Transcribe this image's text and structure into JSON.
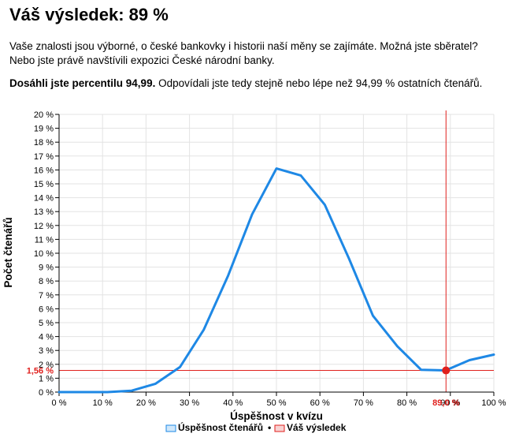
{
  "result": {
    "title": "Váš výsledek: 89 %",
    "description": "Vaše znalosti jsou výborné, o české bankovky i historii naší měny se zajímáte. Možná jste sběratel? Nebo jste právě navštívili expozici České národní banky.",
    "percentile_bold": "Dosáhli jste percentilu 94,99.",
    "percentile_rest": " Odpovídali jste tedy stejně nebo lépe než 94,99 % ostatních čtenářů."
  },
  "chart_data": {
    "type": "line",
    "xlabel": "Úspěšnost v kvízu",
    "ylabel": "Počet čtenářů",
    "xlim": [
      0,
      100
    ],
    "ylim": [
      0,
      20
    ],
    "x_ticks": [
      "0 %",
      "10 %",
      "20 %",
      "30 %",
      "40 %",
      "50 %",
      "60 %",
      "70 %",
      "80 %",
      "90 %",
      "100 %"
    ],
    "y_ticks": [
      "0 %",
      "1 %",
      "2 %",
      "3 %",
      "4 %",
      "5 %",
      "6 %",
      "7 %",
      "8 %",
      "9 %",
      "10 %",
      "11 %",
      "12 %",
      "13 %",
      "14 %",
      "15 %",
      "16 %",
      "17 %",
      "18 %",
      "19 %",
      "20 %"
    ],
    "grid": true,
    "legend_position": "bottom",
    "series": [
      {
        "name": "Úspěšnost čtenářů",
        "color": "#1e88e5",
        "x": [
          0,
          5.6,
          11.1,
          16.7,
          22.2,
          27.8,
          33.3,
          38.9,
          44.4,
          50,
          55.6,
          61.1,
          66.7,
          72.2,
          77.8,
          83.3,
          88.9,
          94.4,
          100
        ],
        "y": [
          0,
          0,
          0,
          0.1,
          0.6,
          1.8,
          4.5,
          8.4,
          12.8,
          16.1,
          15.6,
          13.5,
          9.6,
          5.5,
          3.3,
          1.6,
          1.56,
          2.3,
          2.7
        ]
      }
    ],
    "marker": {
      "name": "Váš výsledek",
      "color": "#e0201d",
      "x": 89,
      "y": 1.56,
      "x_label": "89,0 %",
      "y_label": "1,56 %"
    }
  }
}
